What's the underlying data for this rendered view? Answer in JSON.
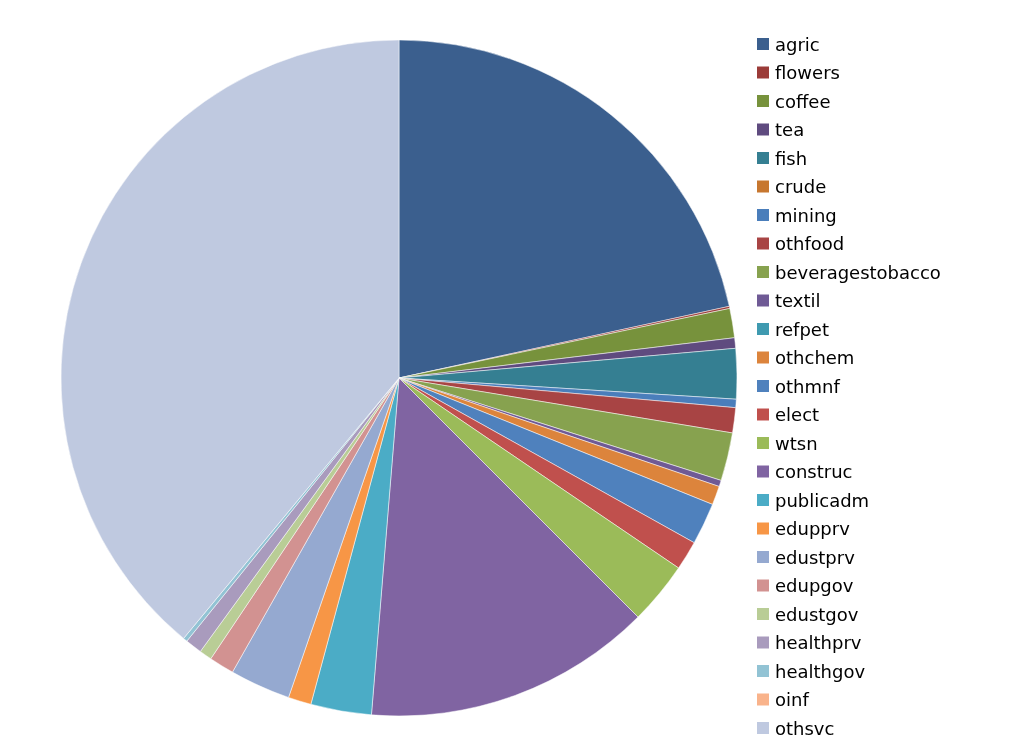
{
  "chart_data": {
    "type": "pie",
    "categories": [
      "agric",
      "flowers",
      "coffee",
      "tea",
      "fish",
      "crude",
      "mining",
      "othfood",
      "beveragestobacco",
      "textil",
      "refpet",
      "othchem",
      "othmnf",
      "elect",
      "wtsn",
      "construc",
      "publicadm",
      "edupprv",
      "edustprv",
      "edupgov",
      "edustgov",
      "healthprv",
      "healthgov",
      "oinf",
      "othsvc"
    ],
    "values": [
      21.6,
      0.1,
      1.4,
      0.5,
      2.4,
      null,
      0.4,
      1.2,
      2.3,
      0.3,
      null,
      0.9,
      2.0,
      1.4,
      3.0,
      13.8,
      2.9,
      1.1,
      2.9,
      1.2,
      0.6,
      0.8,
      0.2,
      null,
      39.0
    ],
    "colors": [
      "#3b5f8e",
      "#9b3b38",
      "#77923c",
      "#5f4b7f",
      "#357f92",
      "#c7772f",
      "#4a7ebb",
      "#a84444",
      "#87a24f",
      "#6f5a95",
      "#3f9ab0",
      "#dc843c",
      "#4f81bd",
      "#c0504d",
      "#9bbb59",
      "#8064a2",
      "#4bacc6",
      "#f79646",
      "#95a9d0",
      "#d29291",
      "#b9cd96",
      "#a99bbd",
      "#92c3d4",
      "#f9b38b",
      "#bfc9e0"
    ],
    "legend": "right"
  }
}
